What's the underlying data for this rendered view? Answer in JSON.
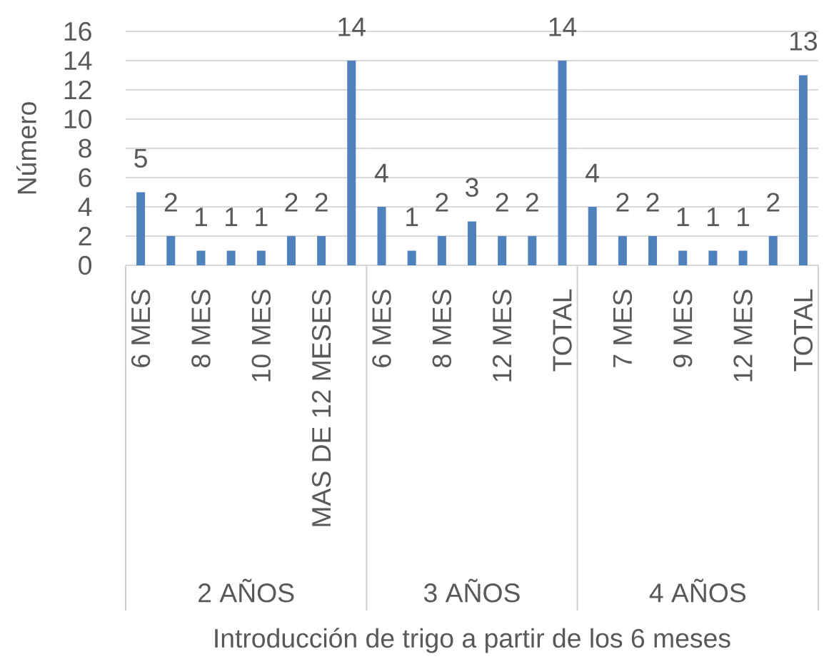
{
  "chart_data": [
    {
      "type": "bar",
      "categories": [
        "6 MES",
        null,
        "8 MES",
        null,
        "10 MES",
        null,
        "MAS DE 12 MESES",
        null
      ],
      "values": [
        5,
        2,
        1,
        1,
        1,
        2,
        2,
        14
      ],
      "color": "#4f81bd",
      "data_labels": true,
      "xlabel": "2 AÑOS",
      "ylabel": "Número",
      "ylim": [
        0,
        16
      ],
      "yticks": [
        0,
        2,
        4,
        6,
        8,
        10,
        12,
        14,
        16
      ],
      "grid": "y"
    },
    {
      "type": "bar",
      "categories": [
        "6 MES",
        null,
        "8 MES",
        null,
        "12 MES",
        null,
        "TOTAL"
      ],
      "values": [
        4,
        1,
        2,
        3,
        2,
        2,
        14
      ],
      "color": "#4f81bd",
      "data_labels": true,
      "xlabel": "3 AÑOS",
      "annotations": [
        "Introducción de trigo a partir de los 6 meses"
      ],
      "ylim": [
        0,
        16
      ],
      "yticks": [
        0,
        2,
        4,
        6,
        8,
        10,
        12,
        14,
        16
      ],
      "grid": "y",
      "tick_labels": "x"
    },
    {
      "type": "bar",
      "categories": [
        null,
        "7 MES",
        null,
        "9 MES",
        null,
        "12 MES",
        null,
        "TOTAL"
      ],
      "values": [
        4,
        2,
        2,
        1,
        1,
        1,
        2,
        13
      ],
      "color": "#4f81bd",
      "data_labels": true,
      "xlabel": "4 AÑOS",
      "ylim": [
        0,
        16
      ],
      "yticks": [
        0,
        2,
        4,
        6,
        8,
        10,
        12,
        14,
        16
      ],
      "grid": "y",
      "tick_labels": "x"
    }
  ]
}
